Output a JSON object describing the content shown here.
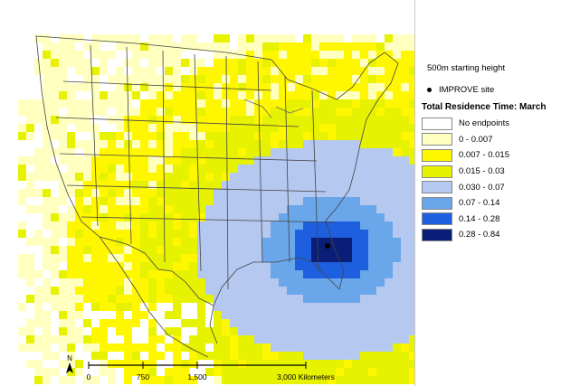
{
  "legend": {
    "header": "500m starting height",
    "site_label": "IMPROVE site",
    "title": "Total Residence Time: March",
    "categories": [
      {
        "label": "No endpoints",
        "color": "#ffffff"
      },
      {
        "label": "0 - 0.007",
        "color": "#ffffc0"
      },
      {
        "label": "0.007 - 0.015",
        "color": "#fff700"
      },
      {
        "label": "0.015 - 0.03",
        "color": "#e6f200"
      },
      {
        "label": "0.030 - 0.07",
        "color": "#b4c8f0"
      },
      {
        "label": "0.07 - 0.14",
        "color": "#6aa6ea"
      },
      {
        "label": "0.14 - 0.28",
        "color": "#1e5fe0"
      },
      {
        "label": "0.28 - 0.84",
        "color": "#0a1e78"
      }
    ]
  },
  "scale": {
    "north": "N",
    "ticks": [
      "0",
      "750",
      "1,500",
      "3,000 Kilometers"
    ]
  },
  "colors": {
    "boundary": "#444444",
    "site": "#000000"
  }
}
